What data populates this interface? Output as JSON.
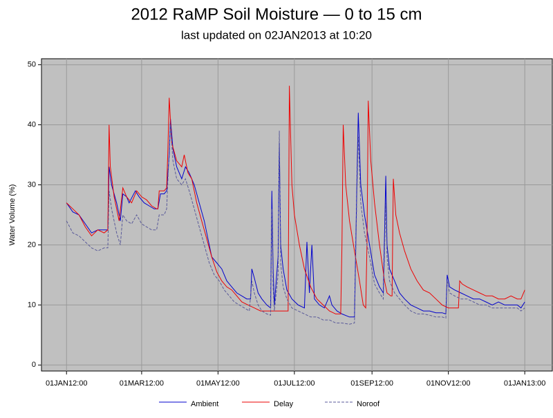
{
  "chart_data": {
    "type": "line",
    "title": "2012 RaMP Soil Moisture — 0 to 15 cm",
    "subtitle": "last updated on 02JAN2013 at 10:20",
    "ylabel": "Water Volume (%)",
    "xlim": [
      -20,
      388
    ],
    "ylim": [
      -1,
      51
    ],
    "xticks": [
      {
        "value": 0,
        "label": "01JAN12:00"
      },
      {
        "value": 60,
        "label": "01MAR12:00"
      },
      {
        "value": 121,
        "label": "01MAY12:00"
      },
      {
        "value": 182,
        "label": "01JUL12:00"
      },
      {
        "value": 244,
        "label": "01SEP12:00"
      },
      {
        "value": 305,
        "label": "01NOV12:00"
      },
      {
        "value": 366,
        "label": "01JAN13:00"
      }
    ],
    "yticks": [
      0,
      10,
      20,
      30,
      40,
      50
    ],
    "grid": true,
    "series": [
      {
        "name": "Ambient",
        "color": "#0000cc",
        "dash": false,
        "x": [
          0,
          5,
          10,
          15,
          20,
          25,
          30,
          33,
          34,
          36,
          40,
          43,
          45,
          48,
          50,
          55,
          58,
          62,
          66,
          70,
          73,
          75,
          78,
          80,
          82,
          83,
          85,
          88,
          92,
          95,
          98,
          102,
          106,
          110,
          113,
          116,
          120,
          124,
          128,
          132,
          136,
          140,
          144,
          147,
          148,
          150,
          153,
          156,
          160,
          163,
          164,
          165,
          166,
          169,
          170,
          171,
          173,
          176,
          180,
          185,
          190,
          192,
          194,
          196,
          198,
          202,
          206,
          210,
          212,
          216,
          220,
          226,
          230,
          232,
          233,
          235,
          238,
          242,
          246,
          250,
          253,
          255,
          256,
          258,
          262,
          266,
          270,
          275,
          280,
          285,
          290,
          295,
          300,
          303,
          304,
          306,
          310,
          315,
          320,
          325,
          330,
          335,
          340,
          345,
          350,
          355,
          360,
          363,
          366
        ],
        "values": [
          27,
          25.5,
          25,
          23.5,
          22,
          22.5,
          22.5,
          22.5,
          33,
          30,
          27,
          24,
          28.5,
          28,
          27,
          29,
          28,
          27,
          26.5,
          26,
          26,
          28.5,
          28.5,
          29,
          35,
          41,
          36,
          33,
          31,
          33,
          32,
          30,
          27,
          24,
          21,
          18,
          17,
          16,
          14,
          13,
          12,
          11.5,
          11,
          11,
          16,
          14.5,
          12,
          11,
          10,
          9.5,
          29,
          16,
          10,
          18,
          37,
          20,
          16,
          12.5,
          11,
          10,
          9.5,
          20.5,
          12,
          20,
          11,
          10,
          9.5,
          11.5,
          10,
          9,
          8.5,
          8,
          8,
          31,
          42,
          30,
          25,
          20,
          15,
          13,
          12,
          31.5,
          20,
          16,
          14,
          12,
          11,
          10,
          9.5,
          9,
          9,
          8.7,
          8.7,
          8.5,
          15,
          13,
          12.5,
          12,
          11.5,
          11,
          11,
          10.5,
          10,
          10.5,
          10,
          10,
          10,
          9.5,
          10.5
        ]
      },
      {
        "name": "Delay",
        "color": "#ee0000",
        "dash": false,
        "x": [
          0,
          5,
          10,
          15,
          20,
          25,
          30,
          33,
          34,
          35,
          38,
          42,
          45,
          48,
          52,
          56,
          60,
          64,
          68,
          72,
          73,
          74,
          78,
          80,
          81,
          82,
          84,
          88,
          92,
          94,
          97,
          100,
          104,
          108,
          112,
          116,
          120,
          124,
          128,
          132,
          136,
          140,
          145,
          150,
          155,
          160,
          165,
          170,
          175,
          177,
          178,
          180,
          182,
          186,
          190,
          195,
          200,
          205,
          210,
          215,
          219,
          220,
          221,
          223,
          226,
          230,
          234,
          237,
          239,
          240,
          241,
          243,
          246,
          250,
          254,
          256,
          259,
          260,
          261,
          263,
          266,
          270,
          275,
          280,
          285,
          290,
          295,
          300,
          305,
          310,
          313,
          314,
          316,
          320,
          325,
          330,
          335,
          340,
          345,
          350,
          355,
          360,
          363,
          366
        ],
        "values": [
          27,
          26,
          25,
          23,
          21.5,
          22.5,
          22,
          22.5,
          40,
          33,
          28,
          24,
          29.5,
          28,
          27,
          29,
          28,
          27.5,
          26.5,
          26,
          26,
          29,
          29,
          29.5,
          36,
          44.5,
          37,
          34,
          33,
          35,
          32,
          31,
          27,
          24,
          21,
          18,
          15.5,
          14,
          13,
          12.5,
          11.5,
          10.5,
          10,
          9.5,
          9,
          9,
          9,
          9,
          9,
          9,
          46.5,
          30,
          25,
          20,
          16,
          13,
          11,
          10,
          9,
          8.5,
          8.5,
          20,
          40,
          30,
          24,
          19,
          14,
          10,
          9.5,
          20,
          44,
          34,
          27,
          20,
          14,
          12,
          11.5,
          11.5,
          31,
          25,
          22,
          19,
          16,
          14,
          12.5,
          12,
          11,
          10,
          9.5,
          9.5,
          9.5,
          14,
          13.5,
          13,
          12.5,
          12,
          11.5,
          11.5,
          11,
          11,
          11.5,
          11,
          11,
          12.5
        ]
      },
      {
        "name": "Noroof",
        "color": "#5a5a99",
        "dash": true,
        "x": [
          0,
          5,
          10,
          15,
          20,
          25,
          30,
          33,
          34,
          36,
          40,
          43,
          45,
          48,
          52,
          56,
          60,
          64,
          68,
          72,
          74,
          78,
          80,
          82,
          83,
          85,
          88,
          92,
          95,
          98,
          102,
          106,
          110,
          114,
          118,
          122,
          126,
          130,
          134,
          138,
          142,
          146,
          148,
          150,
          153,
          156,
          160,
          163,
          164,
          165,
          166,
          169,
          170,
          171,
          173,
          176,
          180,
          185,
          190,
          195,
          200,
          205,
          210,
          215,
          220,
          226,
          230,
          232,
          233,
          235,
          238,
          242,
          246,
          250,
          253,
          255,
          256,
          258,
          262,
          266,
          270,
          275,
          280,
          285,
          290,
          295,
          300,
          303,
          304,
          306,
          310,
          315,
          320,
          325,
          330,
          335,
          340,
          345,
          350,
          355,
          360,
          363,
          366
        ],
        "values": [
          24,
          22,
          21.5,
          20.5,
          19.5,
          19,
          19.5,
          19.5,
          29,
          26,
          22,
          20,
          25,
          24,
          23.5,
          25,
          23.5,
          23,
          22.5,
          22.5,
          25,
          25,
          26,
          36,
          40,
          34,
          31,
          30,
          31,
          29,
          26,
          23,
          20,
          17,
          15,
          14,
          12.5,
          11.5,
          10.5,
          10,
          9.5,
          9,
          14,
          12,
          10,
          9,
          8.5,
          8.3,
          26,
          13,
          9,
          15,
          39,
          17,
          13,
          11,
          9.5,
          9,
          8.5,
          8,
          8,
          7.5,
          7.5,
          7,
          7,
          6.8,
          7,
          29,
          38,
          27,
          22,
          18,
          13.5,
          12,
          11,
          27,
          18,
          14,
          12,
          11,
          10,
          9,
          8.5,
          8.5,
          8.3,
          8,
          8,
          7.8,
          14,
          12,
          11.5,
          11,
          11,
          10.5,
          10,
          10,
          9.5,
          9.5,
          9.5,
          9.5,
          9.5,
          9,
          9.5
        ]
      }
    ]
  }
}
